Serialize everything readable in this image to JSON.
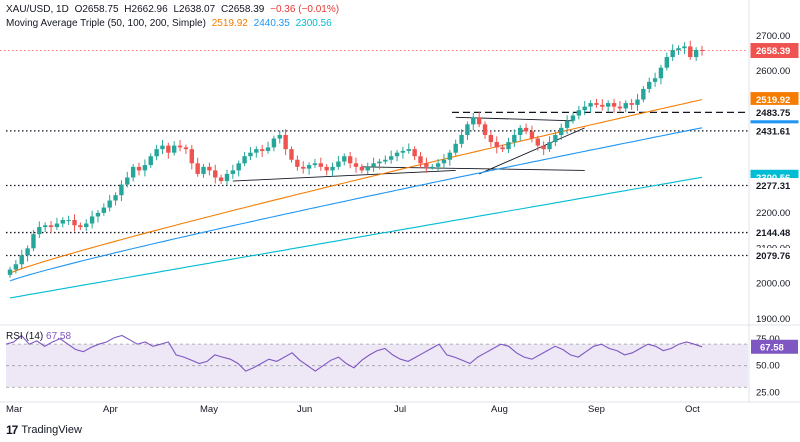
{
  "header": {
    "symbol": "XAU/USD, 1D",
    "open": "O2658.75",
    "high": "H2662.96",
    "low": "L2638.07",
    "close": "C2658.39",
    "change": "−0.36 (−0.01%)",
    "ma_label": "Moving Average Triple (50, 100, 200, Simple)",
    "ma50": "2519.92",
    "ma100": "2440.35",
    "ma200": "2300.56"
  },
  "rsi_header": {
    "label": "RSI (14)",
    "value": "67.58"
  },
  "brand": {
    "name": "TradingView"
  },
  "colors": {
    "up": "#26a69a",
    "down": "#ef5350",
    "ma50": "#f57c00",
    "ma100": "#2196f3",
    "ma200": "#00bcd4",
    "rsi": "#7e57c2",
    "rsi_band": "#ede7f6",
    "close_tag": "#ef5350"
  },
  "chart_data": {
    "type": "candlestick",
    "price_axis": {
      "ticks": [
        "2700.00",
        "2600.00",
        "2200.00",
        "2100.00",
        "2000.00",
        "1900.00"
      ],
      "tick_values": [
        2700,
        2600,
        2200,
        2100,
        2000,
        1900
      ],
      "range": [
        1892,
        2722
      ],
      "tags": [
        {
          "value": 2658.39,
          "label": "2658.39",
          "color": "#ef5350",
          "text": "#ffffff"
        },
        {
          "value": 2519.92,
          "label": "2519.92",
          "color": "#f57c00",
          "text": "#ffffff"
        },
        {
          "value": 2483.75,
          "label": "2483.75",
          "color": "#ffffff",
          "text": "#131722"
        },
        {
          "value": 2440.35,
          "label": "2440.35",
          "color": "#2196f3",
          "text": "#ffffff"
        },
        {
          "value": 2431.61,
          "label": "2431.61",
          "color": "#ffffff",
          "text": "#131722"
        },
        {
          "value": 2300.56,
          "label": "2300.56",
          "color": "#00bcd4",
          "text": "#ffffff"
        },
        {
          "value": 2277.31,
          "label": "2277.31",
          "color": "#ffffff",
          "text": "#131722"
        },
        {
          "value": 2144.48,
          "label": "2144.48",
          "color": "#ffffff",
          "text": "#131722"
        },
        {
          "value": 2079.76,
          "label": "2079.76",
          "color": "#ffffff",
          "text": "#131722"
        }
      ]
    },
    "time_axis": [
      "Mar",
      "Apr",
      "May",
      "Jun",
      "Jul",
      "Aug",
      "Sep",
      "Oct"
    ],
    "horizontal_levels": [
      {
        "value": 2483.75,
        "style": "dashed"
      },
      {
        "value": 2431.61,
        "style": "dotted"
      },
      {
        "value": 2277.31,
        "style": "dotted"
      },
      {
        "value": 2144.48,
        "style": "dotted"
      },
      {
        "value": 2079.76,
        "style": "dotted"
      },
      {
        "value": 2658.39,
        "style": "dotted-close"
      }
    ],
    "candles_close_path": [
      2040,
      2055,
      2080,
      2100,
      2140,
      2160,
      2165,
      2160,
      2170,
      2180,
      2180,
      2165,
      2160,
      2170,
      2190,
      2200,
      2215,
      2235,
      2250,
      2280,
      2300,
      2330,
      2320,
      2335,
      2360,
      2380,
      2390,
      2370,
      2390,
      2385,
      2380,
      2340,
      2310,
      2330,
      2320,
      2300,
      2290,
      2310,
      2320,
      2340,
      2360,
      2370,
      2380,
      2375,
      2385,
      2410,
      2420,
      2380,
      2350,
      2330,
      2325,
      2335,
      2340,
      2330,
      2320,
      2330,
      2345,
      2360,
      2340,
      2330,
      2320,
      2330,
      2340,
      2345,
      2350,
      2360,
      2370,
      2375,
      2380,
      2360,
      2340,
      2330,
      2330,
      2340,
      2350,
      2370,
      2395,
      2420,
      2450,
      2470,
      2450,
      2420,
      2400,
      2385,
      2380,
      2400,
      2420,
      2440,
      2430,
      2410,
      2390,
      2380,
      2400,
      2420,
      2440,
      2460,
      2475,
      2490,
      2500,
      2510,
      2505,
      2500,
      2510,
      2500,
      2495,
      2510,
      2505,
      2520,
      2550,
      2570,
      2580,
      2610,
      2640,
      2660,
      2665,
      2670,
      2640,
      2660,
      2658
    ],
    "ma_series": [
      {
        "name": "MA 50",
        "start": 2030,
        "end": 2519.92
      },
      {
        "name": "MA 100",
        "start": 2008,
        "end": 2440.35
      },
      {
        "name": "MA 200",
        "start": 1960,
        "end": 2300.56
      }
    ],
    "rsi": {
      "ticks": [
        "75.00",
        "50.00",
        "25.00"
      ],
      "tick_values": [
        75,
        50,
        25
      ],
      "range": [
        20,
        85
      ],
      "bands": [
        70,
        30
      ],
      "last": 67.58,
      "values": [
        70,
        72,
        78,
        70,
        73,
        68,
        72,
        75,
        70,
        65,
        63,
        67,
        70,
        72,
        76,
        78,
        74,
        70,
        72,
        68,
        70,
        72,
        60,
        58,
        55,
        52,
        54,
        60,
        58,
        56,
        52,
        45,
        48,
        52,
        56,
        54,
        58,
        62,
        55,
        50,
        45,
        50,
        55,
        58,
        52,
        48,
        55,
        60,
        64,
        66,
        60,
        56,
        54,
        58,
        62,
        66,
        70,
        60,
        58,
        55,
        52,
        58,
        62,
        66,
        70,
        68,
        62,
        58,
        56,
        60,
        64,
        68,
        65,
        60,
        58,
        63,
        68,
        70,
        66,
        64,
        60,
        62,
        66,
        70,
        68,
        64,
        66,
        70,
        72,
        70,
        67.58
      ]
    }
  }
}
